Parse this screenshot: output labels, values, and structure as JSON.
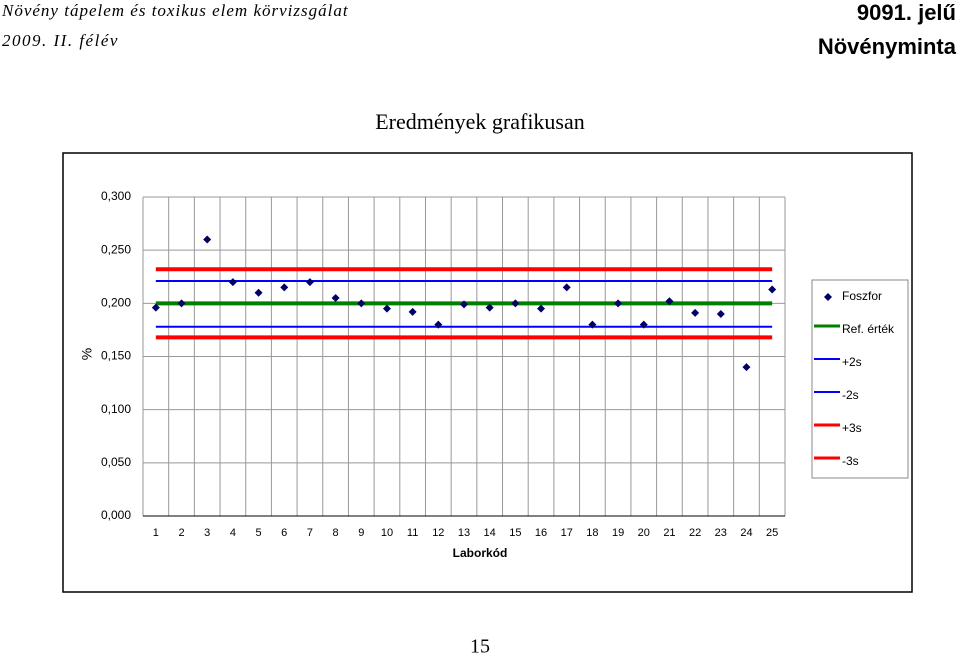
{
  "header": {
    "left_title": "Növény tápelem és toxikus elem körvizsgálat",
    "left_subtitle": "2009. II. félév",
    "right_title": "9091. jelű",
    "right_subtitle": "Növényminta"
  },
  "chart_data": {
    "type": "scatter",
    "title": "Eredmények grafikusan",
    "ylabel": "%",
    "xlabel": "Laborkód",
    "categories": [
      "1",
      "2",
      "3",
      "4",
      "5",
      "6",
      "7",
      "8",
      "9",
      "10",
      "11",
      "12",
      "13",
      "14",
      "15",
      "16",
      "17",
      "18",
      "19",
      "20",
      "21",
      "22",
      "23",
      "24",
      "25"
    ],
    "series": [
      {
        "name": "Foszfor",
        "color": "#000066",
        "values": [
          0.196,
          0.2,
          0.26,
          0.22,
          0.21,
          0.215,
          0.22,
          0.205,
          0.2,
          0.195,
          0.192,
          0.18,
          0.199,
          0.196,
          0.2,
          0.195,
          0.215,
          0.18,
          0.2,
          0.18,
          0.202,
          0.191,
          0.19,
          0.14,
          0.213
        ]
      }
    ],
    "reference_lines": [
      {
        "name": "Ref. érték",
        "color": "#008000",
        "value": 0.2
      },
      {
        "name": "+2s",
        "color": "#0000ff",
        "value": 0.221
      },
      {
        "name": "-2s",
        "color": "#0000ff",
        "value": 0.178
      },
      {
        "name": "+3s",
        "color": "#ff0000",
        "value": 0.232
      },
      {
        "name": "-3s",
        "color": "#ff0000",
        "value": 0.168
      }
    ],
    "ylim": [
      0,
      0.3
    ],
    "yticks": [
      {
        "value": 0,
        "label": "0,000"
      },
      {
        "value": 0.05,
        "label": "0,050"
      },
      {
        "value": 0.1,
        "label": "0,100"
      },
      {
        "value": 0.15,
        "label": "0,150"
      },
      {
        "value": 0.2,
        "label": "0,200"
      },
      {
        "value": 0.25,
        "label": "0,250"
      },
      {
        "value": 0.3,
        "label": "0,300"
      }
    ],
    "grid": true,
    "legend": "right"
  },
  "footer": {
    "page_number": "15"
  }
}
